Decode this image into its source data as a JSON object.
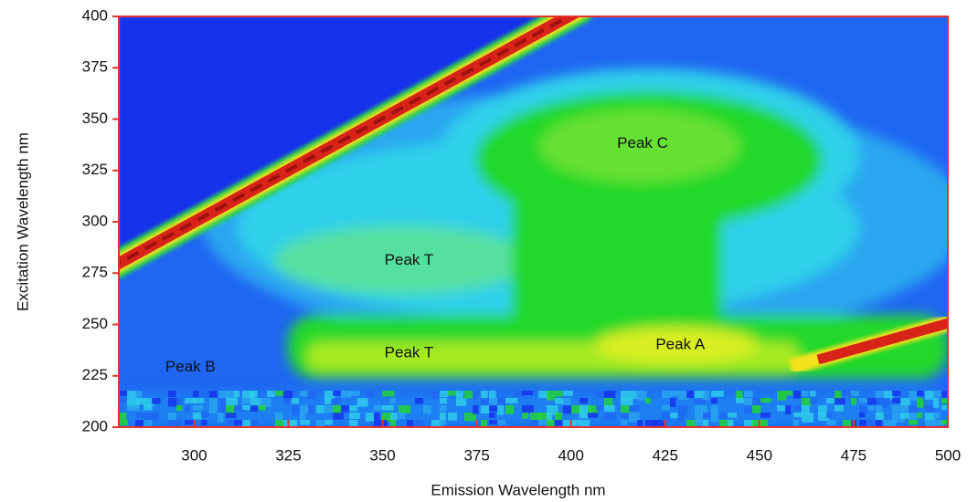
{
  "chart_data": {
    "type": "contour",
    "xlabel": "Emission Wavelength nm",
    "ylabel": "Excitation Wavelength nm",
    "xlim": [
      280,
      500
    ],
    "xticks": [
      300,
      325,
      350,
      375,
      400,
      425,
      450,
      475,
      500
    ],
    "ylim": [
      200,
      400
    ],
    "yticks": [
      200,
      225,
      250,
      275,
      300,
      325,
      350,
      375,
      400
    ],
    "annotations": [
      {
        "text": "Peak C",
        "x": 419,
        "y": 338
      },
      {
        "text": "Peak T",
        "x": 357,
        "y": 281
      },
      {
        "text": "Peak T",
        "x": 357,
        "y": 236
      },
      {
        "text": "Peak A",
        "x": 429,
        "y": 240
      },
      {
        "text": "Peak B",
        "x": 299,
        "y": 229
      }
    ],
    "frame_color": "#e8322e"
  }
}
